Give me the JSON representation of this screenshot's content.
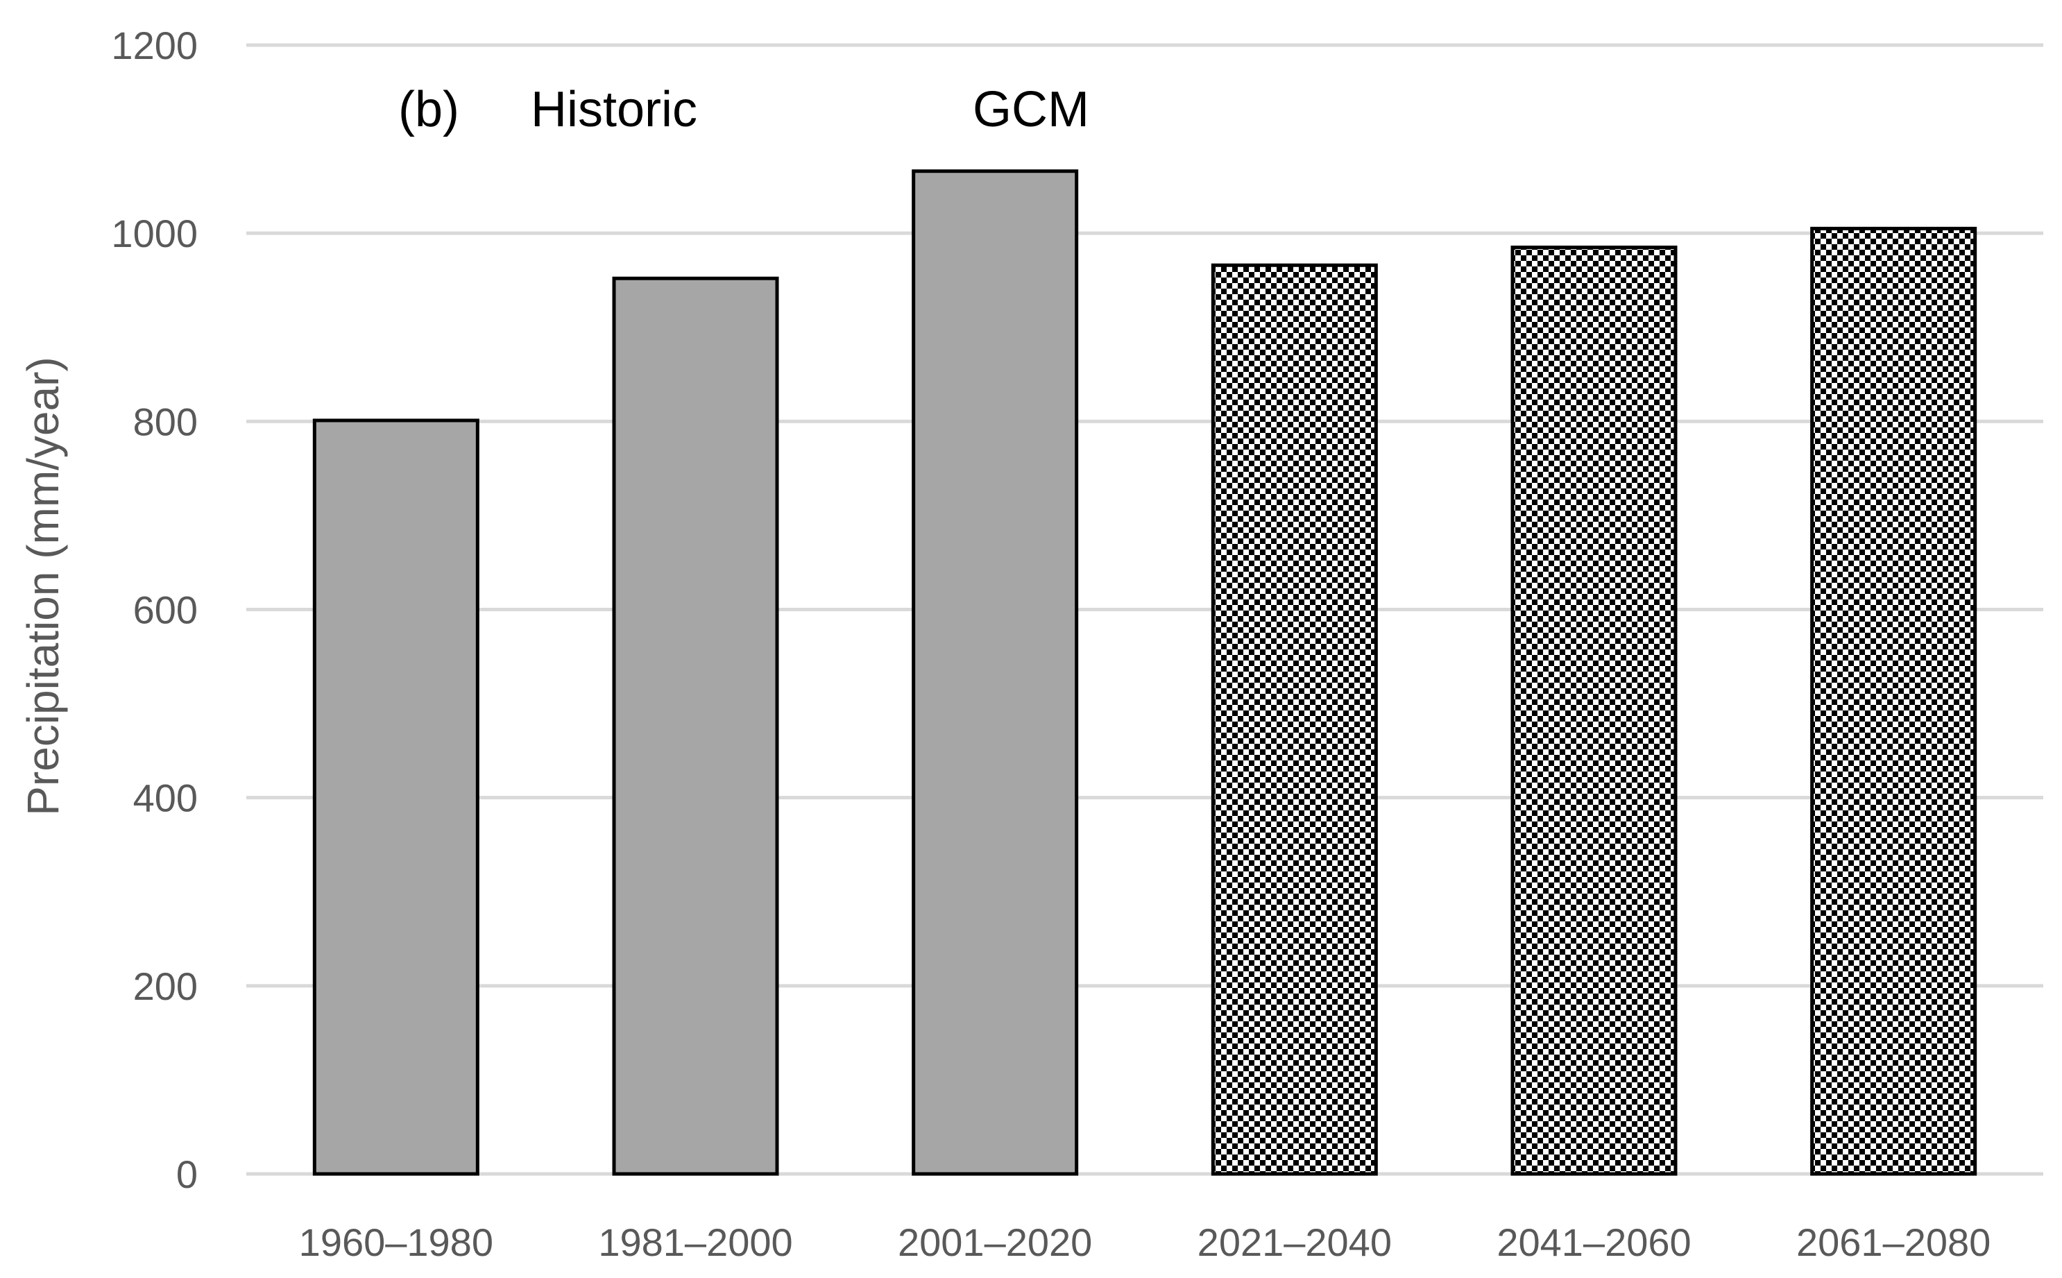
{
  "chart_data": {
    "type": "bar",
    "ylabel": "Precipitation (mm/year)",
    "ylim": [
      0,
      1200
    ],
    "yticks": [
      0,
      200,
      400,
      600,
      800,
      1000,
      1200
    ],
    "grid": true,
    "categories": [
      "1960–1980",
      "1981–2000",
      "2001–2020",
      "2021–2040",
      "2041–2060",
      "2061–2080"
    ],
    "values": [
      801,
      952,
      1066,
      966,
      985,
      1005
    ],
    "groups": [
      "Historic",
      "Historic",
      "Historic",
      "GCM",
      "GCM",
      "GCM"
    ],
    "fills": {
      "Historic": "solid gray",
      "GCM": "black-white checkerboard"
    },
    "colors": {
      "historic_fill": "#a6a6a6",
      "bar_outline": "#000000",
      "gridline": "#d9d9d9",
      "text": "#595959"
    },
    "annotations": {
      "panel_label": "(b)",
      "historic_label": "Historic",
      "gcm_label": "GCM"
    }
  }
}
